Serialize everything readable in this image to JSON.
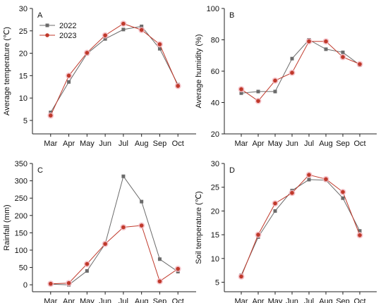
{
  "colors": {
    "series_2022": "#6b6b6b",
    "series_2023": "#c0392b",
    "axis": "#222222",
    "marker_halo_2023": "#f2b8c0"
  },
  "chart_data": [
    {
      "type": "line",
      "panel_label": "A",
      "ylabel": "Average temperature (℃)",
      "xlabel": "",
      "categories": [
        "Mar",
        "Apr",
        "May",
        "Jun",
        "Jul",
        "Aug",
        "Sep",
        "Oct"
      ],
      "ylim": [
        2,
        30
      ],
      "yticks": [
        5,
        10,
        15,
        20,
        25,
        30
      ],
      "legend": {
        "position": "top-left"
      },
      "series": [
        {
          "name": "2022",
          "values": [
            6.8,
            13.6,
            19.9,
            23.2,
            25.3,
            26.0,
            21.0,
            13.0
          ]
        },
        {
          "name": "2023",
          "values": [
            6.1,
            15.0,
            20.1,
            24.0,
            26.6,
            25.2,
            22.0,
            12.7
          ]
        }
      ]
    },
    {
      "type": "line",
      "panel_label": "B",
      "ylabel": "Average humidity (%)",
      "xlabel": "",
      "categories": [
        "Mar",
        "Apr",
        "May",
        "Jun",
        "Jul",
        "Aug",
        "Sep",
        "Oct"
      ],
      "ylim": [
        20,
        100
      ],
      "yticks": [
        20,
        40,
        60,
        80,
        100
      ],
      "series": [
        {
          "name": "2022",
          "values": [
            46,
            47,
            47,
            68,
            80,
            74,
            72,
            64
          ]
        },
        {
          "name": "2023",
          "values": [
            48.5,
            41,
            54,
            59,
            79,
            79,
            69,
            64.5
          ]
        }
      ]
    },
    {
      "type": "line",
      "panel_label": "C",
      "ylabel": "Rainfall (mm)",
      "xlabel": "",
      "categories": [
        "Mar",
        "Apr",
        "May",
        "Jun",
        "Jul",
        "Aug",
        "Sep",
        "Oct"
      ],
      "ylim": [
        -20,
        350
      ],
      "yticks": [
        0,
        50,
        100,
        150,
        200,
        250,
        300,
        350
      ],
      "series": [
        {
          "name": "2022",
          "values": [
            2,
            0,
            40,
            118,
            313,
            240,
            74,
            38
          ]
        },
        {
          "name": "2023",
          "values": [
            3,
            5,
            60,
            118,
            166,
            171,
            10,
            46
          ]
        }
      ]
    },
    {
      "type": "line",
      "panel_label": "D",
      "ylabel": "Soil temperature (℃)",
      "xlabel": "",
      "categories": [
        "Mar",
        "Apr",
        "May",
        "Jun",
        "Jul",
        "Aug",
        "Sep",
        "Oct"
      ],
      "ylim": [
        3,
        30
      ],
      "yticks": [
        5,
        10,
        15,
        20,
        25,
        30
      ],
      "series": [
        {
          "name": "2022",
          "values": [
            6.5,
            14.5,
            20.0,
            24.3,
            26.6,
            26.5,
            22.7,
            15.8
          ]
        },
        {
          "name": "2023",
          "values": [
            6.2,
            15.0,
            21.6,
            23.8,
            27.6,
            26.7,
            24.0,
            14.9
          ]
        }
      ]
    }
  ]
}
